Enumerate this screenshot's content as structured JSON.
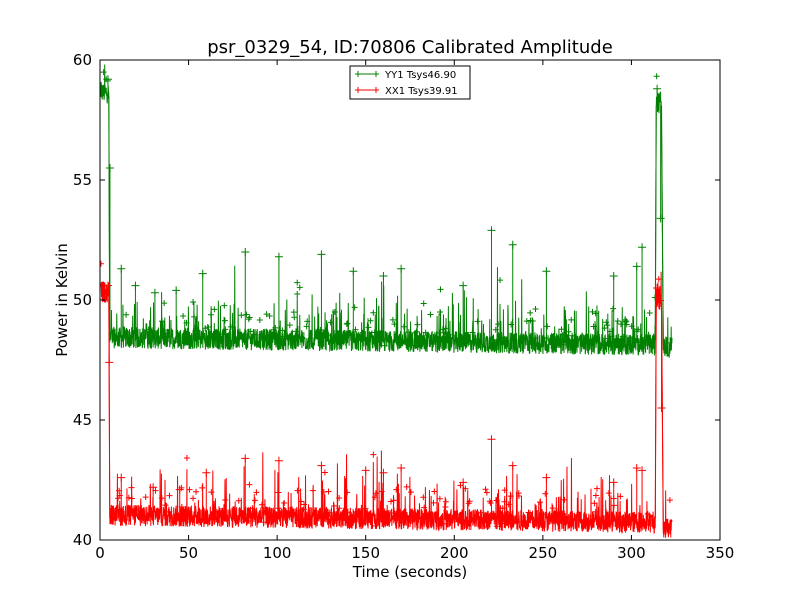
{
  "chart_data": {
    "type": "line",
    "title": "psr_0329_54, ID:70806 Calibrated Amplitude",
    "xlabel": "Time (seconds)",
    "ylabel": "Power in Kelvin",
    "xlim": [
      0,
      350
    ],
    "ylim": [
      40,
      60
    ],
    "xticks": [
      0,
      50,
      100,
      150,
      200,
      250,
      300,
      350
    ],
    "yticks": [
      40,
      45,
      50,
      55,
      60
    ],
    "grid": false,
    "legend_position": "top-center",
    "marker": "plus",
    "series": [
      {
        "name": "YY1 Tsys46.90",
        "color": "#008000",
        "base": 48.3,
        "segments": [
          {
            "x_start": 0.5,
            "x_end": 5,
            "level": 58.5
          },
          {
            "x_start": 5.5,
            "x_end": 313.5,
            "level": 48.3
          },
          {
            "x_start": 314,
            "x_end": 317,
            "level": 58.1
          },
          {
            "x_start": 318,
            "x_end": 323,
            "level": 47.9
          }
        ],
        "peaks": [
          {
            "x": 4.5,
            "y": 59.2
          },
          {
            "x": 5.6,
            "y": 55.5
          },
          {
            "x": 12,
            "y": 51.3
          },
          {
            "x": 20,
            "y": 50.6
          },
          {
            "x": 31,
            "y": 50.3
          },
          {
            "x": 43,
            "y": 50.4
          },
          {
            "x": 58,
            "y": 51.1
          },
          {
            "x": 82,
            "y": 52.0
          },
          {
            "x": 101,
            "y": 51.8
          },
          {
            "x": 125,
            "y": 51.9
          },
          {
            "x": 143,
            "y": 51.2
          },
          {
            "x": 160,
            "y": 51.0
          },
          {
            "x": 170,
            "y": 51.3
          },
          {
            "x": 205,
            "y": 50.6
          },
          {
            "x": 221,
            "y": 52.9
          },
          {
            "x": 233,
            "y": 52.3
          },
          {
            "x": 252,
            "y": 51.2
          },
          {
            "x": 290,
            "y": 51.0
          },
          {
            "x": 303,
            "y": 51.4
          },
          {
            "x": 306,
            "y": 52.2
          },
          {
            "x": 314.5,
            "y": 58.8
          },
          {
            "x": 316.5,
            "y": 53.4
          }
        ]
      },
      {
        "name": "XX1 Tsys39.91",
        "color": "#ff0000",
        "base": 40.9,
        "segments": [
          {
            "x_start": 0.5,
            "x_end": 5,
            "level": 50.2
          },
          {
            "x_start": 5.5,
            "x_end": 313.5,
            "level": 40.9
          },
          {
            "x_start": 314,
            "x_end": 317,
            "level": 49.9
          },
          {
            "x_start": 318,
            "x_end": 323,
            "level": 40.4
          }
        ],
        "peaks": [
          {
            "x": 4.5,
            "y": 50.6
          },
          {
            "x": 5.2,
            "y": 47.4
          },
          {
            "x": 12,
            "y": 42.6
          },
          {
            "x": 30,
            "y": 42.2
          },
          {
            "x": 45,
            "y": 42.1
          },
          {
            "x": 60,
            "y": 42.8
          },
          {
            "x": 82,
            "y": 43.4
          },
          {
            "x": 101,
            "y": 43.3
          },
          {
            "x": 125,
            "y": 43.1
          },
          {
            "x": 150,
            "y": 42.9
          },
          {
            "x": 160,
            "y": 42.8
          },
          {
            "x": 170,
            "y": 43.0
          },
          {
            "x": 205,
            "y": 42.4
          },
          {
            "x": 221,
            "y": 44.2
          },
          {
            "x": 233,
            "y": 43.1
          },
          {
            "x": 252,
            "y": 42.6
          },
          {
            "x": 290,
            "y": 42.4
          },
          {
            "x": 303,
            "y": 43.0
          },
          {
            "x": 306,
            "y": 42.9
          },
          {
            "x": 314.5,
            "y": 50.5
          },
          {
            "x": 317,
            "y": 45.5
          }
        ]
      }
    ]
  }
}
